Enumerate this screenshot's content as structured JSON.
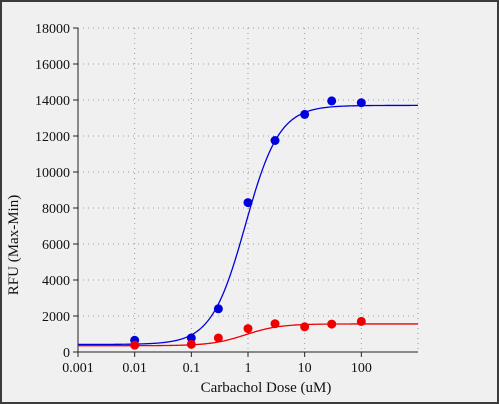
{
  "chart_data": {
    "type": "scatter",
    "xlabel": "Carbachol Dose (uM)",
    "ylabel": "RFU (Max-Min)",
    "x_scale": "log",
    "xlim": [
      0.001,
      1000
    ],
    "ylim": [
      0,
      18000
    ],
    "x_ticks": [
      "0.001",
      "0.01",
      "0.1",
      "1",
      "10",
      "100"
    ],
    "y_ticks": [
      "0",
      "2000",
      "4000",
      "6000",
      "8000",
      "10000",
      "12000",
      "14000",
      "16000",
      "18000"
    ],
    "grid": true,
    "series": [
      {
        "color": "#0000dd",
        "x": [
          0.01,
          0.1,
          0.3,
          1,
          3,
          10,
          30,
          100
        ],
        "y": [
          650,
          780,
          2400,
          8300,
          11750,
          13200,
          13950,
          13850
        ],
        "fit": {
          "bottom": 420,
          "top": 13700,
          "ec50": 0.9,
          "hill": 1.45
        }
      },
      {
        "color": "#ee0000",
        "x": [
          0.01,
          0.1,
          0.3,
          1,
          3,
          10,
          30,
          100
        ],
        "y": [
          380,
          430,
          780,
          1300,
          1570,
          1400,
          1550,
          1700
        ],
        "fit": {
          "bottom": 350,
          "top": 1560,
          "ec50": 0.9,
          "hill": 1.45
        }
      }
    ]
  }
}
